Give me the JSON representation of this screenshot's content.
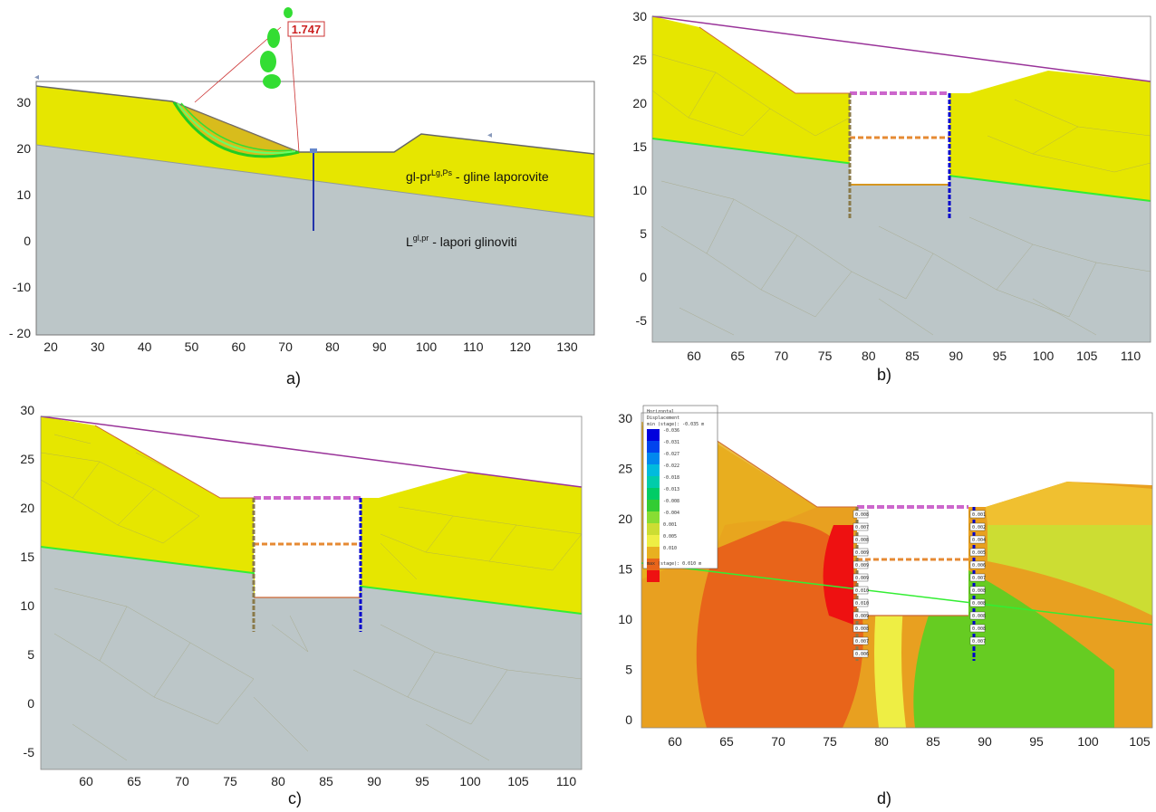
{
  "panels": {
    "a": {
      "caption": "a)",
      "fos_label": "1.747",
      "layer1_label": "gl-pr",
      "layer1_sup": "Lg,Ps",
      "layer1_rest": " - gline laporovite",
      "layer2_label": "L",
      "layer2_sup": "gl,pr",
      "layer2_rest": " - lapori glinoviti",
      "x_ticks": [
        "20",
        "30",
        "40",
        "50",
        "60",
        "70",
        "80",
        "90",
        "100",
        "110",
        "120",
        "130"
      ],
      "y_ticks": [
        "30",
        "20",
        "10",
        "0",
        "-10",
        "- 20"
      ]
    },
    "b": {
      "caption": "b)",
      "x_ticks": [
        "60",
        "65",
        "70",
        "75",
        "80",
        "85",
        "90",
        "95",
        "100",
        "105",
        "110"
      ],
      "y_ticks": [
        "30",
        "25",
        "20",
        "15",
        "10",
        "5",
        "0",
        "-5"
      ]
    },
    "c": {
      "caption": "c)",
      "x_ticks": [
        "60",
        "65",
        "70",
        "75",
        "80",
        "85",
        "90",
        "95",
        "100",
        "105",
        "110"
      ],
      "y_ticks": [
        "30",
        "25",
        "20",
        "15",
        "10",
        "5",
        "0",
        "-5"
      ]
    },
    "d": {
      "caption": "d)",
      "x_ticks": [
        "60",
        "65",
        "70",
        "75",
        "80",
        "85",
        "90",
        "95",
        "100",
        "105"
      ],
      "y_ticks": [
        "30",
        "25",
        "20",
        "15",
        "10",
        "5",
        "0"
      ],
      "legend": {
        "title1": "Horizontal",
        "title2": "Displacement",
        "min_line": "min (stage): -0.035 m",
        "max_line": "max (stage): 0.010 m",
        "values": [
          "-0.036",
          "-0.031",
          "-0.027",
          "-0.022",
          "-0.018",
          "-0.013",
          "-0.008",
          "-0.004",
          "0.001",
          "0.005",
          "0.010"
        ]
      },
      "left_wall_values": [
        "0.008",
        "0.007",
        "0.008",
        "0.009",
        "0.009",
        "0.009",
        "0.010",
        "0.010",
        "0.009",
        "0.008",
        "0.007",
        "0.006"
      ],
      "right_wall_values": [
        "0.001",
        "0.002",
        "0.004",
        "0.005",
        "0.006",
        "0.007",
        "0.008",
        "0.008",
        "0.008",
        "0.008",
        "0.007"
      ]
    }
  },
  "colors": {
    "soil_upper": "#e6e600",
    "soil_lower": "#bcc6c8",
    "layer_line": "#33cc33",
    "surface_line": "#993399",
    "wall_left": "#8a7a4a",
    "wall_right": "#0000cc",
    "strut": "#cc66cc",
    "anchor": "#e68a33"
  }
}
